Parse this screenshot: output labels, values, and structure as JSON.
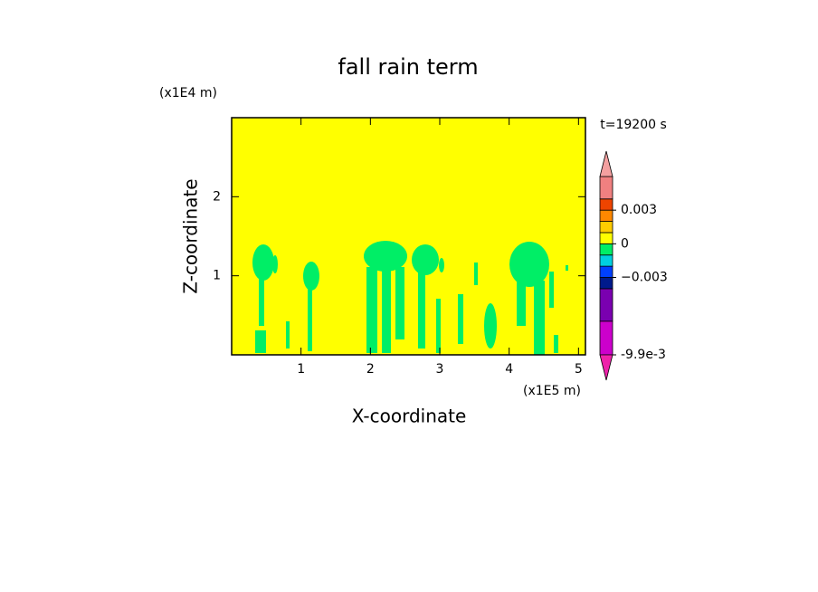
{
  "chart_data": {
    "type": "contour",
    "title": "fall rain term",
    "x_label": "X-coordinate",
    "y_label": "Z-coordinate",
    "x_unit": "(x1E5 m)",
    "y_unit": "(x1E4 m)",
    "annotation": "t=19200 s",
    "xlim": [
      0,
      5.1
    ],
    "ylim": [
      0,
      3
    ],
    "xticks": [
      1,
      2,
      3,
      4,
      5
    ],
    "yticks": [
      1,
      2
    ],
    "colorbar": {
      "levels": [
        -0.0099,
        -0.0069,
        -0.004,
        -0.003,
        -0.002,
        -0.001,
        0,
        0.001,
        0.002,
        0.003,
        0.004,
        0.006
      ],
      "colors": [
        "#cc00cc",
        "#7a00b0",
        "#001a8c",
        "#0040ff",
        "#00d0e0",
        "#00ee66",
        "#ffff00",
        "#ffcc00",
        "#ff8800",
        "#ee4400",
        "#f08080"
      ],
      "extend_colors": [
        "#ee22aa",
        "#f4a0a0"
      ],
      "ticks": [
        {
          "value": -0.0099,
          "label": "-9.9e-3"
        },
        {
          "value": -0.003,
          "label": "−0.003"
        },
        0,
        0.003
      ]
    },
    "field_background_level": 6,
    "field_feature_level": 5
  }
}
